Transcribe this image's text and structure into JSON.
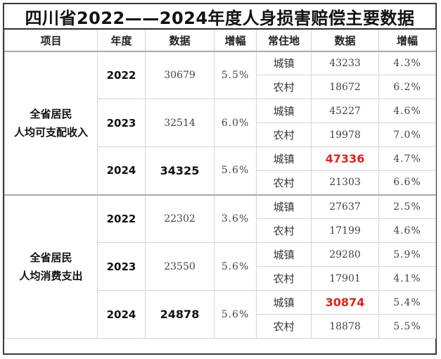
{
  "title": "四川省2022——2024年度人身损害赔偿主要数据",
  "headers": [
    "项目",
    "年度",
    "数据",
    "增幅",
    "常住地",
    "数据",
    "增幅"
  ],
  "sections": [
    {
      "label_line1": "全省居民",
      "label_line2": "人均可支配收入",
      "years": [
        {
          "year": "2022",
          "value": "30679",
          "growth": "5.5%",
          "rows": [
            {
              "area": "城镇",
              "value": "43233",
              "growth": "4.3%"
            },
            {
              "area": "农村",
              "value": "18672",
              "growth": "6.2%"
            }
          ]
        },
        {
          "year": "2023",
          "value": "32514",
          "growth": "6.0%",
          "rows": [
            {
              "area": "城镇",
              "value": "45227",
              "growth": "4.6%"
            },
            {
              "area": "农村",
              "value": "19978",
              "growth": "7.0%"
            }
          ]
        },
        {
          "year": "2024",
          "value": "34325",
          "growth": "5.6%",
          "rows": [
            {
              "area": "城镇",
              "value": "47336",
              "growth": "4.7%"
            },
            {
              "area": "农村",
              "value": "21303",
              "growth": "6.6%"
            }
          ]
        }
      ]
    },
    {
      "label_line1": "全省居民",
      "label_line2": "人均消费支出",
      "years": [
        {
          "year": "2022",
          "value": "22302",
          "growth": "3.6%",
          "rows": [
            {
              "area": "城镇",
              "value": "27637",
              "growth": "2.5%"
            },
            {
              "area": "农村",
              "value": "17199",
              "growth": "4.6%"
            }
          ]
        },
        {
          "year": "2023",
          "value": "23550",
          "growth": "5.6%",
          "rows": [
            {
              "area": "城镇",
              "value": "29280",
              "growth": "5.9%"
            },
            {
              "area": "农村",
              "value": "17901",
              "growth": "4.1%"
            }
          ]
        },
        {
          "year": "2024",
          "value": "24878",
          "growth": "5.6%",
          "rows": [
            {
              "area": "城镇",
              "value": "30874",
              "growth": "5.4%"
            },
            {
              "area": "农村",
              "value": "18878",
              "growth": "5.5%"
            }
          ]
        }
      ]
    }
  ],
  "colors": {
    "highlight": "#e0221b",
    "border": "#3a3a3a"
  }
}
